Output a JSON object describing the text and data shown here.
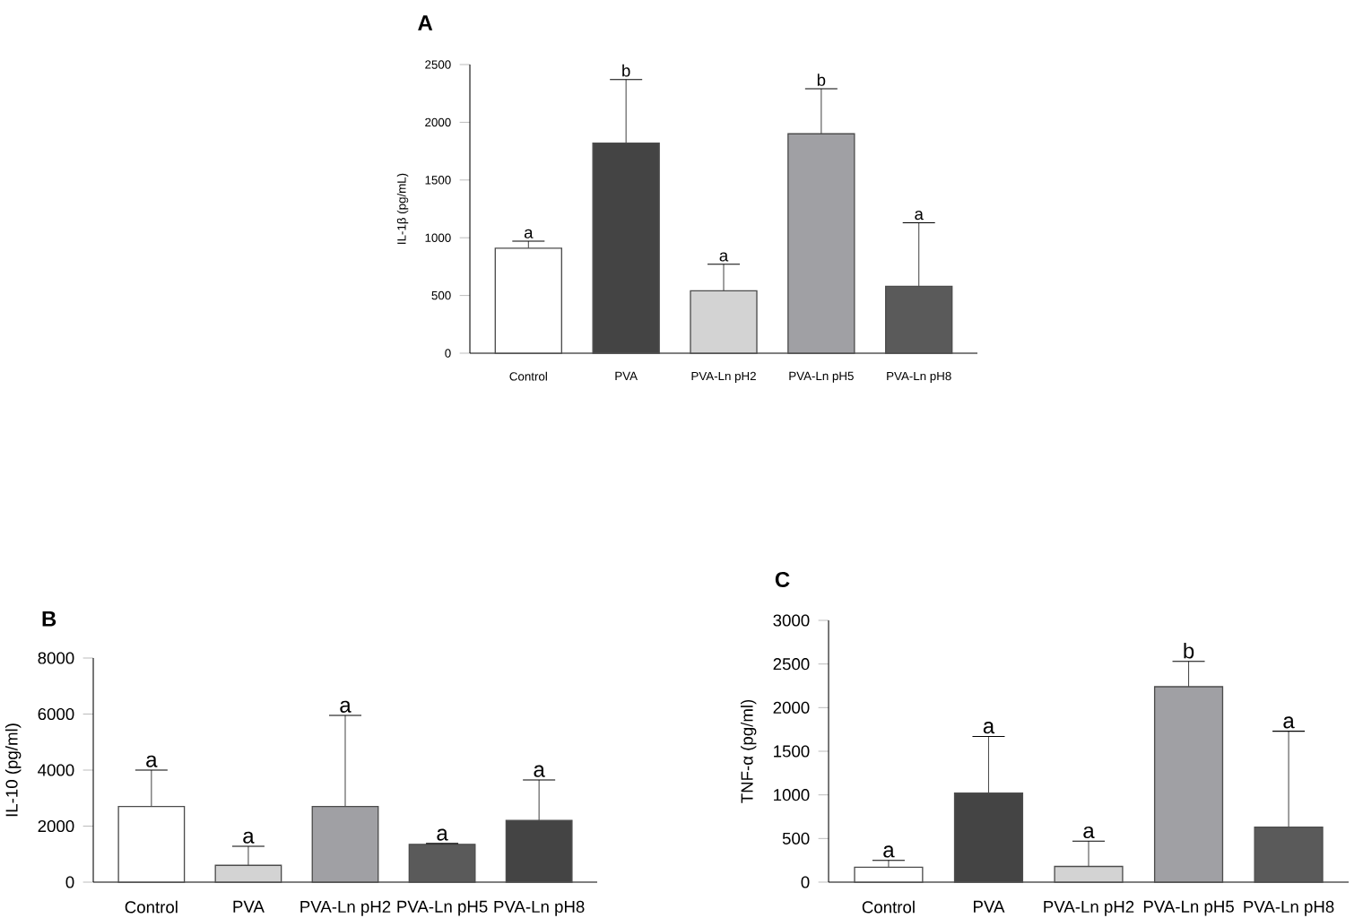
{
  "chart_data": [
    {
      "type": "bar",
      "title": "A",
      "ylabel": "IL-1β (pg/mL)",
      "categories": [
        "Control",
        "PVA",
        "PVA-Ln pH2",
        "PVA-Ln pH5",
        "PVA-Ln pH8"
      ],
      "values": [
        910,
        1820,
        540,
        1900,
        580
      ],
      "errors": [
        [
          910,
          970
        ],
        [
          1820,
          2370
        ],
        [
          540,
          770
        ],
        [
          1900,
          2290
        ],
        [
          580,
          1130
        ]
      ],
      "colors": [
        "#ffffff",
        "#444444",
        "#d3d3d3",
        "#a0a0a4",
        "#5a5a5a"
      ],
      "ylim": [
        0,
        2500
      ],
      "yticks": [
        0,
        500,
        1000,
        1500,
        2000,
        2500
      ],
      "annotations": [
        "a",
        "b",
        "a",
        "b",
        "a"
      ]
    },
    {
      "type": "bar",
      "title": "B",
      "ylabel": "IL-10 (pg/ml)",
      "categories": [
        "Control",
        "PVA",
        "PVA-Ln pH2",
        "PVA-Ln pH5",
        "PVA-Ln pH8"
      ],
      "values": [
        2700,
        600,
        2700,
        1350,
        2200
      ],
      "errors": [
        [
          2700,
          4000
        ],
        [
          600,
          1280
        ],
        [
          2700,
          5950
        ],
        [
          1350,
          1380
        ],
        [
          2200,
          3650
        ]
      ],
      "colors": [
        "#ffffff",
        "#d3d3d3",
        "#a0a0a4",
        "#5a5a5a",
        "#444444"
      ],
      "ylim": [
        0,
        8000
      ],
      "yticks": [
        0,
        2000,
        4000,
        6000,
        8000
      ],
      "annotations": [
        "a",
        "a",
        "a",
        "a",
        "a"
      ]
    },
    {
      "type": "bar",
      "title": "C",
      "ylabel": "TNF-α (pg/ml)",
      "categories": [
        "Control",
        "PVA",
        "PVA-Ln pH2",
        "PVA-Ln pH5",
        "PVA-Ln pH8"
      ],
      "values": [
        170,
        1020,
        180,
        2240,
        630
      ],
      "errors": [
        [
          170,
          250
        ],
        [
          1020,
          1670
        ],
        [
          180,
          470
        ],
        [
          2240,
          2530
        ],
        [
          630,
          1730
        ]
      ],
      "colors": [
        "#ffffff",
        "#444444",
        "#d3d3d3",
        "#a0a0a4",
        "#5a5a5a"
      ],
      "ylim": [
        0,
        3000
      ],
      "yticks": [
        0,
        500,
        1000,
        1500,
        2000,
        2500,
        3000
      ],
      "annotations": [
        "a",
        "a",
        "a",
        "b",
        "a"
      ]
    }
  ]
}
